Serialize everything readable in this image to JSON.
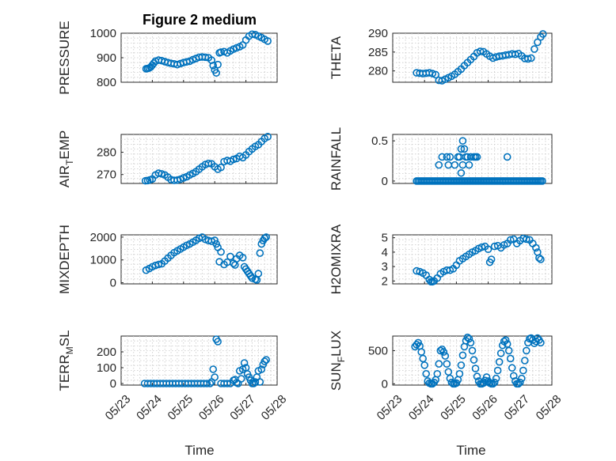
{
  "figure": {
    "title": "Figure 2 medium",
    "accent_color": "#0072BD",
    "x_label": "Time",
    "x_tick_labels": [
      "05/23",
      "05/24",
      "05/25",
      "05/26",
      "05/27",
      "05/28"
    ]
  },
  "chart_data": [
    {
      "id": "pressure",
      "type": "scatter",
      "title": "Figure 2 medium",
      "ylabel": "PRESSURE",
      "ylim": [
        800,
        1000
      ],
      "yticks": [
        800,
        900,
        1000
      ],
      "xlim": [
        "05/23",
        "05/28"
      ],
      "grid": true,
      "x": [
        0.8,
        0.85,
        0.9,
        0.95,
        1.0,
        1.05,
        1.1,
        1.2,
        1.3,
        1.4,
        1.5,
        1.6,
        1.7,
        1.8,
        1.9,
        2.0,
        2.1,
        2.2,
        2.3,
        2.4,
        2.5,
        2.6,
        2.7,
        2.8,
        2.9,
        2.95,
        3.0,
        3.05,
        3.1,
        3.15,
        3.2,
        3.3,
        3.4,
        3.5,
        3.6,
        3.7,
        3.8,
        3.9,
        4.0,
        4.1,
        4.2,
        4.3,
        4.4,
        4.5,
        4.6,
        4.7
      ],
      "y": [
        855,
        856,
        858,
        862,
        870,
        878,
        886,
        890,
        888,
        884,
        880,
        877,
        875,
        872,
        876,
        880,
        883,
        886,
        892,
        897,
        902,
        903,
        902,
        900,
        890,
        868,
        850,
        838,
        872,
        920,
        923,
        925,
        920,
        928,
        935,
        940,
        945,
        952,
        972,
        988,
        996,
        994,
        988,
        982,
        975,
        968
      ]
    },
    {
      "id": "theta",
      "type": "scatter",
      "ylabel": "THETA",
      "ylim": [
        277,
        290
      ],
      "yticks": [
        280,
        285,
        290
      ],
      "xlim": [
        "05/23",
        "05/28"
      ],
      "grid": true,
      "x": [
        0.75,
        0.85,
        0.95,
        1.05,
        1.15,
        1.25,
        1.35,
        1.45,
        1.55,
        1.65,
        1.75,
        1.85,
        1.95,
        2.05,
        2.15,
        2.25,
        2.35,
        2.45,
        2.55,
        2.65,
        2.75,
        2.85,
        2.95,
        3.05,
        3.15,
        3.25,
        3.35,
        3.45,
        3.55,
        3.65,
        3.75,
        3.85,
        3.95,
        4.05,
        4.15,
        4.25,
        4.35,
        4.45,
        4.55,
        4.65,
        4.72
      ],
      "y": [
        279.5,
        279.4,
        279.3,
        279.4,
        279.5,
        279.3,
        279.0,
        277.5,
        277.4,
        277.8,
        278.2,
        278.6,
        279.1,
        279.8,
        280.5,
        281.4,
        282.2,
        283.0,
        283.8,
        284.8,
        285.2,
        285.1,
        284.5,
        283.9,
        283.4,
        283.7,
        283.9,
        284.0,
        284.2,
        284.3,
        284.5,
        284.4,
        284.6,
        284.0,
        283.3,
        283.2,
        283.4,
        285.8,
        287.6,
        289.0,
        289.8
      ]
    },
    {
      "id": "air_temp",
      "type": "scatter",
      "ylabel": "AIR_TEMP",
      "ylim": [
        266,
        288
      ],
      "yticks": [
        270,
        280
      ],
      "xlim": [
        "05/23",
        "05/28"
      ],
      "grid": true,
      "x": [
        0.78,
        0.85,
        0.92,
        1.0,
        1.1,
        1.2,
        1.3,
        1.4,
        1.5,
        1.6,
        1.7,
        1.8,
        1.9,
        2.0,
        2.1,
        2.2,
        2.3,
        2.4,
        2.5,
        2.6,
        2.7,
        2.8,
        2.9,
        3.0,
        3.1,
        3.2,
        3.3,
        3.4,
        3.5,
        3.6,
        3.7,
        3.8,
        3.9,
        4.0,
        4.1,
        4.2,
        4.3,
        4.4,
        4.5,
        4.6,
        4.7
      ],
      "y": [
        267.2,
        267.3,
        267.6,
        268.0,
        269.8,
        270.6,
        270.3,
        269.8,
        268.8,
        267.7,
        267.4,
        267.5,
        267.9,
        268.5,
        269.0,
        269.8,
        270.5,
        271.3,
        272.4,
        273.5,
        274.5,
        275.0,
        274.8,
        273.5,
        272.4,
        273.2,
        275.8,
        276.3,
        276.0,
        276.8,
        277.2,
        278.2,
        277.6,
        278.8,
        280.3,
        281.5,
        282.6,
        283.4,
        284.8,
        286.2,
        287.0
      ]
    },
    {
      "id": "rainfall",
      "type": "scatter",
      "ylabel": "RAINFALL",
      "ylim": [
        -0.03,
        0.58
      ],
      "yticks": [
        0,
        0.5
      ],
      "xlim": [
        "05/23",
        "05/28"
      ],
      "grid": true,
      "x": [
        0.75,
        0.8,
        0.85,
        0.9,
        0.95,
        1.0,
        1.05,
        1.1,
        1.15,
        1.2,
        1.25,
        1.3,
        1.35,
        1.4,
        1.45,
        1.5,
        1.55,
        1.6,
        1.65,
        1.7,
        1.75,
        1.8,
        1.85,
        1.9,
        1.95,
        2.0,
        2.05,
        2.1,
        2.15,
        2.2,
        2.25,
        2.3,
        2.35,
        2.4,
        2.45,
        2.5,
        2.55,
        2.6,
        2.65,
        2.7,
        2.75,
        2.8,
        2.85,
        2.9,
        2.95,
        3.0,
        3.05,
        3.1,
        3.15,
        3.2,
        3.25,
        3.3,
        3.35,
        3.4,
        3.45,
        3.5,
        3.55,
        3.6,
        3.65,
        3.7,
        3.75,
        3.8,
        3.85,
        3.9,
        3.95,
        4.0,
        4.05,
        4.1,
        4.15,
        4.2,
        4.25,
        4.3,
        4.35,
        4.4,
        4.45,
        4.5,
        4.55,
        4.6,
        4.65,
        4.7,
        1.45,
        1.55,
        1.7,
        1.75,
        1.8,
        1.95,
        2.05,
        2.1,
        2.15,
        2.2,
        2.25,
        2.3,
        2.35,
        2.4,
        2.45,
        2.55,
        2.6,
        2.65,
        3.6,
        2.2,
        2.15
      ],
      "y": [
        0,
        0,
        0,
        0,
        0,
        0,
        0,
        0,
        0,
        0,
        0,
        0,
        0,
        0,
        0,
        0,
        0,
        0,
        0,
        0,
        0,
        0,
        0,
        0,
        0,
        0,
        0,
        0,
        0,
        0,
        0,
        0,
        0,
        0,
        0,
        0,
        0,
        0,
        0,
        0,
        0,
        0,
        0,
        0,
        0,
        0,
        0,
        0,
        0,
        0,
        0,
        0,
        0,
        0,
        0,
        0,
        0,
        0,
        0,
        0,
        0,
        0,
        0,
        0,
        0,
        0,
        0,
        0,
        0,
        0,
        0,
        0,
        0,
        0,
        0,
        0,
        0,
        0,
        0,
        0,
        0.2,
        0.3,
        0.3,
        0.2,
        0.3,
        0.2,
        0.3,
        0.3,
        0.4,
        0.5,
        0.4,
        0.3,
        0.3,
        0.2,
        0.3,
        0.3,
        0.3,
        0.3,
        0.3,
        0.2,
        0.1
      ]
    },
    {
      "id": "mixdepth",
      "type": "scatter",
      "ylabel": "MIXDEPTH",
      "ylim": [
        -50,
        2100
      ],
      "yticks": [
        0,
        1000,
        2000
      ],
      "xlim": [
        "05/23",
        "05/28"
      ],
      "grid": true,
      "x": [
        0.8,
        0.9,
        1.0,
        1.1,
        1.2,
        1.3,
        1.4,
        1.5,
        1.6,
        1.7,
        1.8,
        1.9,
        2.0,
        2.1,
        2.2,
        2.3,
        2.4,
        2.5,
        2.6,
        2.7,
        2.8,
        2.9,
        3.0,
        3.05,
        3.1,
        3.15,
        3.2,
        3.3,
        3.4,
        3.5,
        3.6,
        3.65,
        3.7,
        3.8,
        3.9,
        3.95,
        4.0,
        4.05,
        4.1,
        4.15,
        4.2,
        4.3,
        4.35,
        4.4,
        4.45,
        4.5,
        4.55,
        4.6,
        4.65
      ],
      "y": [
        550,
        620,
        700,
        760,
        800,
        830,
        950,
        1080,
        1200,
        1320,
        1400,
        1480,
        1560,
        1640,
        1700,
        1780,
        1860,
        1950,
        2000,
        1900,
        1850,
        1820,
        1860,
        1700,
        1550,
        920,
        1350,
        800,
        900,
        1150,
        850,
        780,
        1050,
        1200,
        1100,
        700,
        600,
        500,
        400,
        300,
        200,
        150,
        120,
        400,
        1300,
        1700,
        1850,
        1950,
        2000
      ]
    },
    {
      "id": "h2omixra",
      "type": "scatter",
      "ylabel": "H2OMIXRA",
      "ylim": [
        1.8,
        5.2
      ],
      "yticks": [
        2,
        3,
        4,
        5
      ],
      "xlim": [
        "05/23",
        "05/28"
      ],
      "grid": true,
      "x": [
        0.75,
        0.85,
        0.95,
        1.05,
        1.15,
        1.2,
        1.25,
        1.3,
        1.4,
        1.5,
        1.6,
        1.7,
        1.8,
        1.9,
        2.0,
        2.1,
        2.2,
        2.3,
        2.4,
        2.5,
        2.6,
        2.7,
        2.8,
        2.9,
        3.0,
        3.05,
        3.1,
        3.2,
        3.3,
        3.4,
        3.5,
        3.6,
        3.7,
        3.8,
        3.9,
        4.0,
        4.1,
        4.2,
        4.3,
        4.4,
        4.5,
        4.55,
        4.6,
        4.65
      ],
      "y": [
        2.7,
        2.65,
        2.55,
        2.4,
        2.1,
        1.95,
        1.95,
        2.0,
        2.2,
        2.5,
        2.65,
        2.75,
        2.75,
        2.85,
        3.1,
        3.4,
        3.55,
        3.7,
        3.85,
        4.0,
        4.1,
        4.25,
        4.35,
        4.4,
        4.2,
        3.3,
        3.5,
        4.4,
        4.45,
        4.3,
        4.5,
        4.6,
        4.85,
        4.9,
        4.6,
        4.8,
        4.95,
        4.9,
        4.85,
        4.6,
        4.3,
        4.0,
        3.6,
        3.5
      ]
    },
    {
      "id": "terr_msl",
      "type": "scatter",
      "ylabel": "TERR_MSL",
      "ylim": [
        -10,
        300
      ],
      "yticks": [
        0,
        100,
        200
      ],
      "xlim": [
        "05/23",
        "05/28"
      ],
      "grid": true,
      "x": [
        0.75,
        0.85,
        0.95,
        1.05,
        1.15,
        1.25,
        1.35,
        1.45,
        1.55,
        1.65,
        1.75,
        1.85,
        1.95,
        2.05,
        2.15,
        2.25,
        2.35,
        2.45,
        2.55,
        2.65,
        2.75,
        2.85,
        2.9,
        2.95,
        3.0,
        3.05,
        3.1,
        3.2,
        3.3,
        3.4,
        3.5,
        3.6,
        3.65,
        3.7,
        3.75,
        3.8,
        3.85,
        3.9,
        3.95,
        4.0,
        4.05,
        4.1,
        4.15,
        4.2,
        4.25,
        4.3,
        4.35,
        4.4,
        4.45,
        4.5,
        4.55,
        4.6,
        4.65
      ],
      "y": [
        0,
        0,
        0,
        0,
        0,
        0,
        0,
        0,
        0,
        0,
        0,
        0,
        0,
        0,
        0,
        0,
        0,
        0,
        0,
        0,
        0,
        0,
        10,
        90,
        40,
        280,
        265,
        0,
        0,
        0,
        0,
        20,
        25,
        5,
        0,
        80,
        30,
        90,
        130,
        100,
        60,
        40,
        20,
        0,
        0,
        10,
        40,
        80,
        10,
        90,
        120,
        140,
        150
      ]
    },
    {
      "id": "sun_flux",
      "type": "scatter",
      "ylabel": "SUN_FLUX",
      "ylim": [
        -20,
        720
      ],
      "yticks": [
        0,
        500
      ],
      "xlim": [
        "05/23",
        "05/28"
      ],
      "grid": true,
      "x": [
        0.7,
        0.75,
        0.8,
        0.85,
        0.9,
        0.95,
        1.0,
        1.05,
        1.1,
        1.15,
        1.2,
        1.25,
        1.3,
        1.35,
        1.4,
        1.45,
        1.5,
        1.55,
        1.6,
        1.65,
        1.7,
        1.75,
        1.8,
        1.85,
        1.9,
        1.95,
        2.0,
        2.05,
        2.1,
        2.15,
        2.2,
        2.25,
        2.3,
        2.35,
        2.4,
        2.45,
        2.5,
        2.55,
        2.6,
        2.65,
        2.7,
        2.75,
        2.8,
        2.85,
        2.9,
        2.95,
        3.0,
        3.05,
        3.1,
        3.15,
        3.2,
        3.25,
        3.3,
        3.35,
        3.4,
        3.45,
        3.5,
        3.55,
        3.6,
        3.65,
        3.7,
        3.75,
        3.8,
        3.85,
        3.9,
        3.95,
        4.0,
        4.05,
        4.1,
        4.15,
        4.2,
        4.25,
        4.3,
        4.35,
        4.4,
        4.45,
        4.5,
        4.55,
        4.6,
        4.65
      ],
      "y": [
        560,
        590,
        620,
        570,
        480,
        380,
        280,
        150,
        40,
        10,
        0,
        0,
        20,
        60,
        150,
        300,
        500,
        520,
        480,
        420,
        300,
        180,
        80,
        20,
        0,
        0,
        10,
        60,
        150,
        280,
        430,
        560,
        650,
        700,
        680,
        620,
        500,
        360,
        230,
        110,
        40,
        0,
        0,
        10,
        50,
        100,
        40,
        10,
        0,
        0,
        20,
        80,
        200,
        330,
        460,
        580,
        640,
        660,
        600,
        500,
        380,
        240,
        120,
        40,
        0,
        0,
        20,
        80,
        200,
        350,
        500,
        620,
        680,
        690,
        660,
        610,
        640,
        690,
        660,
        620
      ]
    }
  ]
}
